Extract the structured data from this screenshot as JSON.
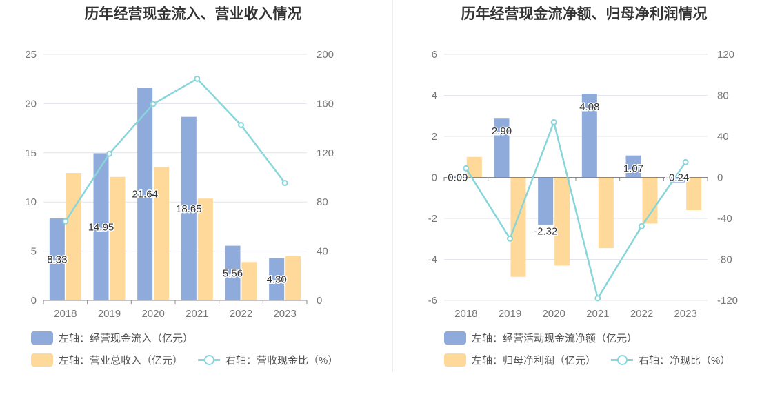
{
  "colors": {
    "bar_a": "#8eabdb",
    "bar_b": "#ffd99a",
    "line": "#88d5da",
    "grid": "#e2e4ee",
    "axis": "#888888"
  },
  "chart_data": [
    {
      "type": "bar",
      "title": "历年经营现金流入、营业收入情况",
      "categories": [
        "2018",
        "2019",
        "2020",
        "2021",
        "2022",
        "2023"
      ],
      "left_axis": {
        "min": 0,
        "max": 25,
        "ticks": [
          0,
          5,
          10,
          15,
          20,
          25
        ]
      },
      "right_axis": {
        "min": 0,
        "max": 200,
        "ticks": [
          0,
          40,
          80,
          120,
          160,
          200
        ]
      },
      "series": [
        {
          "name": "左轴：经营现金流入（亿元）",
          "type": "bar",
          "axis": "left",
          "values": [
            8.33,
            14.95,
            21.64,
            18.65,
            5.56,
            4.3
          ],
          "labels": [
            "8.33",
            "14.95",
            "21.64",
            "18.65",
            "5.56",
            "4.30"
          ]
        },
        {
          "name": "左轴：营业总收入（亿元）",
          "type": "bar",
          "axis": "left",
          "values": [
            12.95,
            12.55,
            13.55,
            10.35,
            3.9,
            4.5
          ]
        },
        {
          "name": "右轴：营收现金比（%）",
          "type": "line",
          "axis": "right",
          "values": [
            64.3,
            119.2,
            159.7,
            180.2,
            142.6,
            95.5
          ]
        }
      ],
      "legend_rows": [
        [
          0
        ],
        [
          1,
          2
        ]
      ]
    },
    {
      "type": "bar",
      "title": "历年经营现金流净额、归母净利润情况",
      "categories": [
        "2018",
        "2019",
        "2020",
        "2021",
        "2022",
        "2023"
      ],
      "left_axis": {
        "min": -6,
        "max": 6,
        "ticks": [
          -6,
          -4,
          -2,
          0,
          2,
          4,
          6
        ]
      },
      "right_axis": {
        "min": -120,
        "max": 120,
        "ticks": [
          -120,
          -80,
          -40,
          0,
          40,
          80,
          120
        ]
      },
      "series": [
        {
          "name": "左轴：经营活动现金流净额（亿元）",
          "type": "bar",
          "axis": "left",
          "values": [
            0.09,
            2.9,
            -2.32,
            4.08,
            1.07,
            -0.24
          ],
          "labels": [
            "0.09",
            "2.90",
            "-2.32",
            "4.08",
            "1.07",
            "-0.24"
          ]
        },
        {
          "name": "左轴：归母净利润（亿元）",
          "type": "bar",
          "axis": "left",
          "values": [
            1.0,
            -4.85,
            -4.3,
            -3.45,
            -2.25,
            -1.6
          ]
        },
        {
          "name": "右轴：净现比（%）",
          "type": "line",
          "axis": "right",
          "values": [
            8.8,
            -59.7,
            53.9,
            -117.9,
            -47.6,
            14.9
          ]
        }
      ],
      "legend_rows": [
        [
          0
        ],
        [
          1,
          2
        ]
      ]
    }
  ]
}
